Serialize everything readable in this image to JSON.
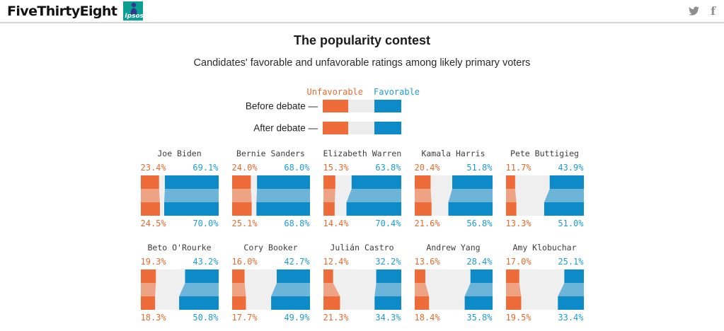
{
  "header": {
    "brand": "FiveThirtyEight",
    "partner_label": "Ipsos",
    "social": {
      "twitter_icon": "twitter-bird",
      "facebook_glyph": "f"
    }
  },
  "title": "The popularity contest",
  "subtitle": "Candidates' favorable and unfavorable ratings among likely primary voters",
  "legend": {
    "unfavorable_label": "Unfavorable",
    "favorable_label": "Favorable",
    "row_labels": [
      "Before debate —",
      "After debate —"
    ]
  },
  "colors": {
    "unfavorable": "#ed6c39",
    "favorable": "#0d8bc9",
    "unfavorable_text": "#e96a2e",
    "favorable_text": "#1e9bd7",
    "track_gray": "#efefef",
    "ipsos_teal": "#0b9e92"
  },
  "chart_data": {
    "type": "bar",
    "subtype": "diverging-before-after-slope",
    "unit": "%",
    "xlim": [
      0,
      100
    ],
    "series": [
      "Before debate",
      "After debate"
    ],
    "measures": [
      "unfavorable",
      "favorable"
    ],
    "legend_position": "top-center",
    "candidates": [
      {
        "name": "Joe Biden",
        "before": {
          "unfav": 23.4,
          "fav": 69.1
        },
        "after": {
          "unfav": 24.5,
          "fav": 70.0
        }
      },
      {
        "name": "Bernie Sanders",
        "before": {
          "unfav": 24.0,
          "fav": 68.0
        },
        "after": {
          "unfav": 25.1,
          "fav": 68.8
        }
      },
      {
        "name": "Elizabeth Warren",
        "before": {
          "unfav": 15.3,
          "fav": 63.8
        },
        "after": {
          "unfav": 14.4,
          "fav": 70.4
        }
      },
      {
        "name": "Kamala Harris",
        "before": {
          "unfav": 20.4,
          "fav": 51.8
        },
        "after": {
          "unfav": 21.6,
          "fav": 56.8
        }
      },
      {
        "name": "Pete Buttigieg",
        "before": {
          "unfav": 11.7,
          "fav": 43.9
        },
        "after": {
          "unfav": 13.3,
          "fav": 51.0
        }
      },
      {
        "name": "Beto O'Rourke",
        "before": {
          "unfav": 19.3,
          "fav": 43.2
        },
        "after": {
          "unfav": 18.3,
          "fav": 50.8
        }
      },
      {
        "name": "Cory Booker",
        "before": {
          "unfav": 16.0,
          "fav": 42.7
        },
        "after": {
          "unfav": 17.7,
          "fav": 49.9
        }
      },
      {
        "name": "Julián Castro",
        "before": {
          "unfav": 12.4,
          "fav": 32.2
        },
        "after": {
          "unfav": 21.3,
          "fav": 34.3
        }
      },
      {
        "name": "Andrew Yang",
        "before": {
          "unfav": 13.6,
          "fav": 28.4
        },
        "after": {
          "unfav": 18.4,
          "fav": 35.8
        }
      },
      {
        "name": "Amy Klobuchar",
        "before": {
          "unfav": 17.0,
          "fav": 25.1
        },
        "after": {
          "unfav": 19.5,
          "fav": 33.4
        }
      }
    ]
  }
}
